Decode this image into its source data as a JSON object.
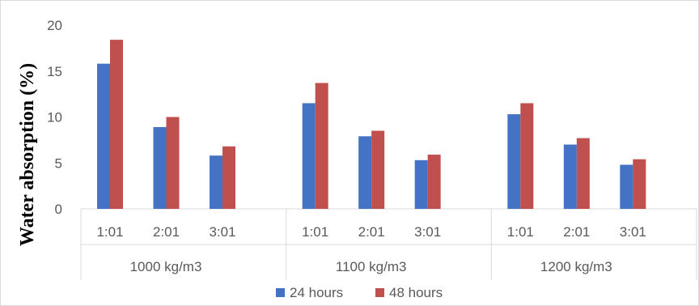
{
  "chart_data": {
    "type": "bar",
    "title": "",
    "xlabel": "",
    "ylabel": "Water absorption (%)",
    "ylim": [
      0,
      20
    ],
    "yticks": [
      0,
      5,
      10,
      15,
      20
    ],
    "groups": [
      {
        "label": "1000 kg/m3",
        "categories": [
          "1:01",
          "2:01",
          "3:01"
        ]
      },
      {
        "label": "1100 kg/m3",
        "categories": [
          "1:01",
          "2:01",
          "3:01"
        ]
      },
      {
        "label": "1200 kg/m3",
        "categories": [
          "1:01",
          "2:01",
          "3:01"
        ]
      }
    ],
    "series": [
      {
        "name": "24 hours",
        "color": "#4472c4",
        "values": [
          15.8,
          8.9,
          5.8,
          11.5,
          7.9,
          5.3,
          10.3,
          7.0,
          4.8
        ]
      },
      {
        "name": "48 hours",
        "color": "#c0504d",
        "values": [
          18.4,
          10.0,
          6.8,
          13.7,
          8.5,
          5.9,
          11.5,
          7.7,
          5.4
        ]
      }
    ],
    "grid": false,
    "legend_position": "bottom"
  }
}
